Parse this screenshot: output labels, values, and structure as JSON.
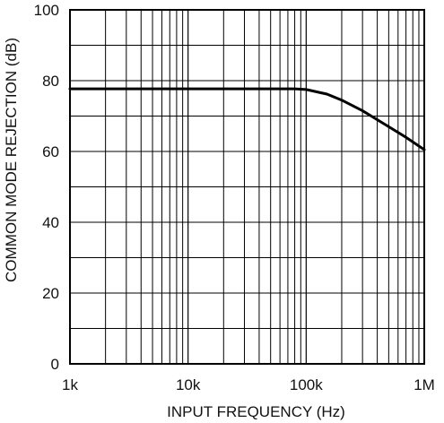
{
  "chart_data": {
    "type": "line",
    "title": "",
    "xlabel": "INPUT FREQUENCY (Hz)",
    "ylabel": "COMMON MODE REJECTION (dB)",
    "x_scale": "log",
    "xlim": [
      1000,
      1000000
    ],
    "ylim": [
      0,
      100
    ],
    "x_ticks": [
      {
        "value": 1000,
        "label": "1k"
      },
      {
        "value": 10000,
        "label": "10k"
      },
      {
        "value": 100000,
        "label": "100k"
      },
      {
        "value": 1000000,
        "label": "1M"
      }
    ],
    "y_ticks": [
      {
        "value": 0,
        "label": "0"
      },
      {
        "value": 20,
        "label": "20"
      },
      {
        "value": 40,
        "label": "40"
      },
      {
        "value": 60,
        "label": "60"
      },
      {
        "value": 80,
        "label": "80"
      },
      {
        "value": 100,
        "label": "100"
      }
    ],
    "grid": true,
    "series": [
      {
        "color": "#000000",
        "x": [
          1000,
          10000,
          50000,
          80000,
          100000,
          150000,
          200000,
          300000,
          500000,
          700000,
          1000000
        ],
        "y": [
          77.7,
          77.7,
          77.7,
          77.7,
          77.5,
          76.2,
          74.5,
          71.5,
          67.0,
          64.0,
          60.5
        ]
      }
    ]
  }
}
